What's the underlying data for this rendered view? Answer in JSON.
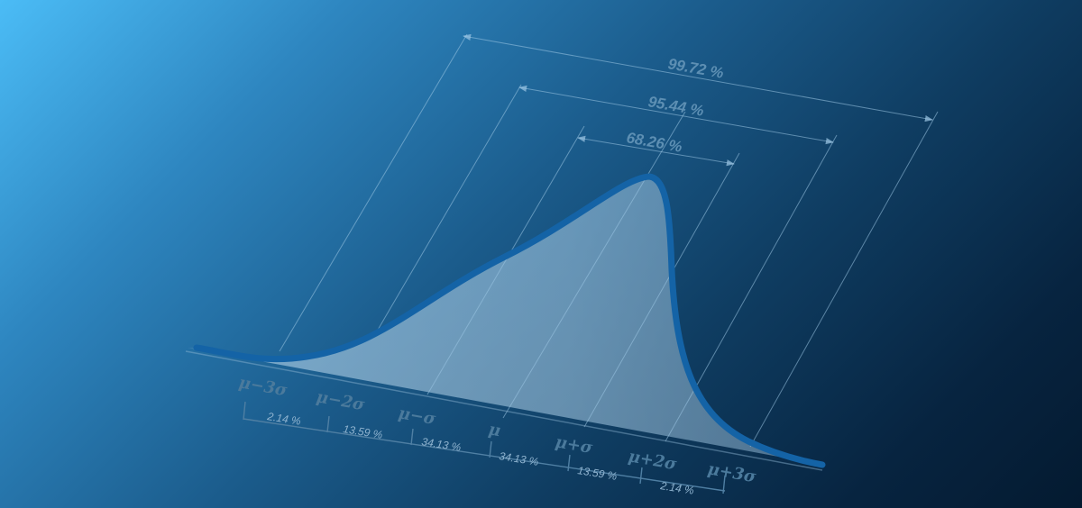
{
  "brackets": [
    "99.72 %",
    "95.44 %",
    "68.26 %"
  ],
  "sigma_labels": [
    "μ−3σ",
    "μ−2σ",
    "μ−σ",
    "μ",
    "μ+σ",
    "μ+2σ",
    "μ+3σ"
  ],
  "segment_percents": [
    "2.14 %",
    "13.59 %",
    "34.13 %",
    "34.13 %",
    "13.59 %",
    "2.14 %"
  ],
  "colors": {
    "curve": "#1463a6",
    "fill": "#9fc6e2",
    "guide": "#9cc6e4",
    "label": "#4b7a9c"
  }
}
